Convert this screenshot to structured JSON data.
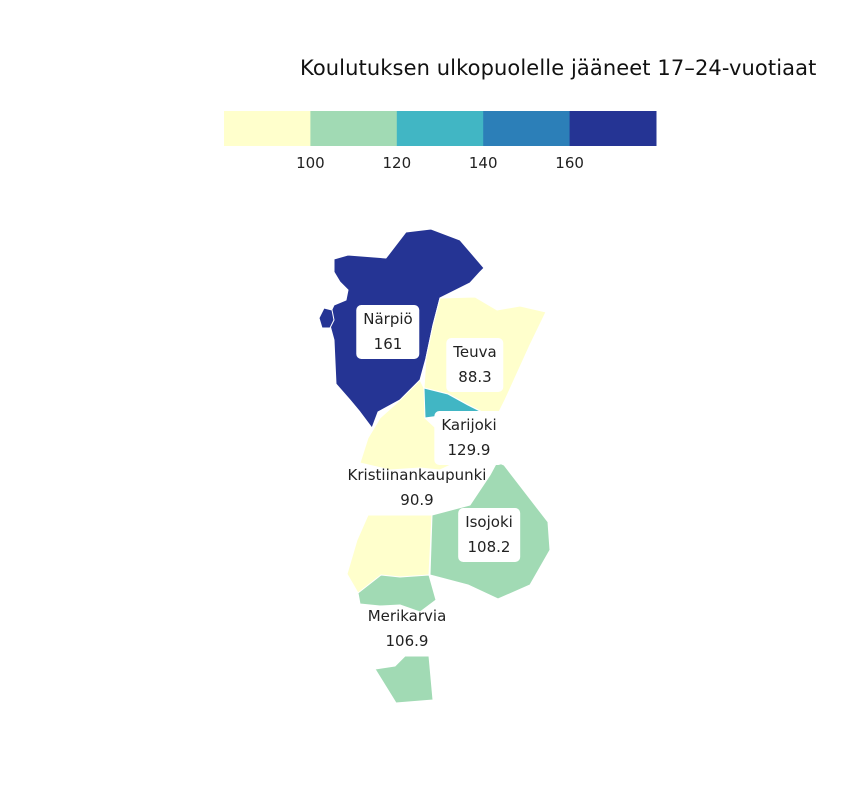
{
  "title": "Koulutuksen ulkopuolelle jääneet 17–24-vuotiaat",
  "legend": {
    "breaks": [
      100,
      120,
      140,
      160
    ],
    "tick_labels": [
      "100",
      "120",
      "140",
      "160"
    ],
    "colors": [
      "#ffffcc",
      "#a1dab4",
      "#41b6c4",
      "#2c7fb8",
      "#253494"
    ]
  },
  "regions": [
    {
      "id": "narpio",
      "name": "Närpiö",
      "value": 161,
      "value_label": "161",
      "color": "#253494"
    },
    {
      "id": "teuva",
      "name": "Teuva",
      "value": 88.3,
      "value_label": "88.3",
      "color": "#ffffcc"
    },
    {
      "id": "karijoki",
      "name": "Karijoki",
      "value": 129.9,
      "value_label": "129.9",
      "color": "#41b6c4"
    },
    {
      "id": "kristiinankaupunki",
      "name": "Kristiinankaupunki",
      "value": 90.9,
      "value_label": "90.9",
      "color": "#ffffcc"
    },
    {
      "id": "isojoki",
      "name": "Isojoki",
      "value": 108.2,
      "value_label": "108.2",
      "color": "#a1dab4"
    },
    {
      "id": "merikarvia",
      "name": "Merikarvia",
      "value": 106.9,
      "value_label": "106.9",
      "color": "#a1dab4"
    }
  ]
}
